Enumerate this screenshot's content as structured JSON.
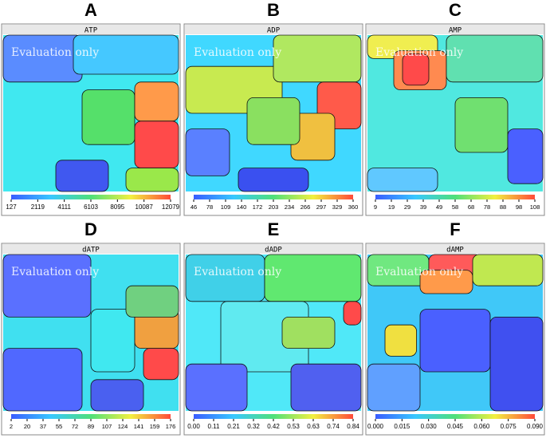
{
  "panels": [
    {
      "letter": "A",
      "title": "ATP",
      "watermark": "Evaluation only",
      "ticks": [
        "127",
        "2119",
        "4111",
        "6103",
        "8095",
        "10087",
        "12079"
      ]
    },
    {
      "letter": "B",
      "title": "ADP",
      "watermark": "Evaluation only",
      "ticks": [
        "46",
        "78",
        "109",
        "140",
        "172",
        "203",
        "234",
        "266",
        "297",
        "329",
        "360"
      ]
    },
    {
      "letter": "C",
      "title": "AMP",
      "watermark": "Evaluation only",
      "ticks": [
        "9",
        "19",
        "29",
        "39",
        "49",
        "58",
        "68",
        "78",
        "88",
        "98",
        "108"
      ]
    },
    {
      "letter": "D",
      "title": "dATP",
      "watermark": "Evaluation only",
      "ticks": [
        "2",
        "20",
        "37",
        "55",
        "72",
        "89",
        "107",
        "124",
        "141",
        "159",
        "176"
      ]
    },
    {
      "letter": "E",
      "title": "dADP",
      "watermark": "Evaluation only",
      "ticks": [
        "0.00",
        "0.11",
        "0.21",
        "0.32",
        "0.42",
        "0.53",
        "0.63",
        "0.74",
        "0.84"
      ]
    },
    {
      "letter": "F",
      "title": "dAMP",
      "watermark": "Evaluation only",
      "ticks": [
        "0.000",
        "0.015",
        "0.030",
        "0.045",
        "0.060",
        "0.075",
        "0.090"
      ]
    }
  ]
}
